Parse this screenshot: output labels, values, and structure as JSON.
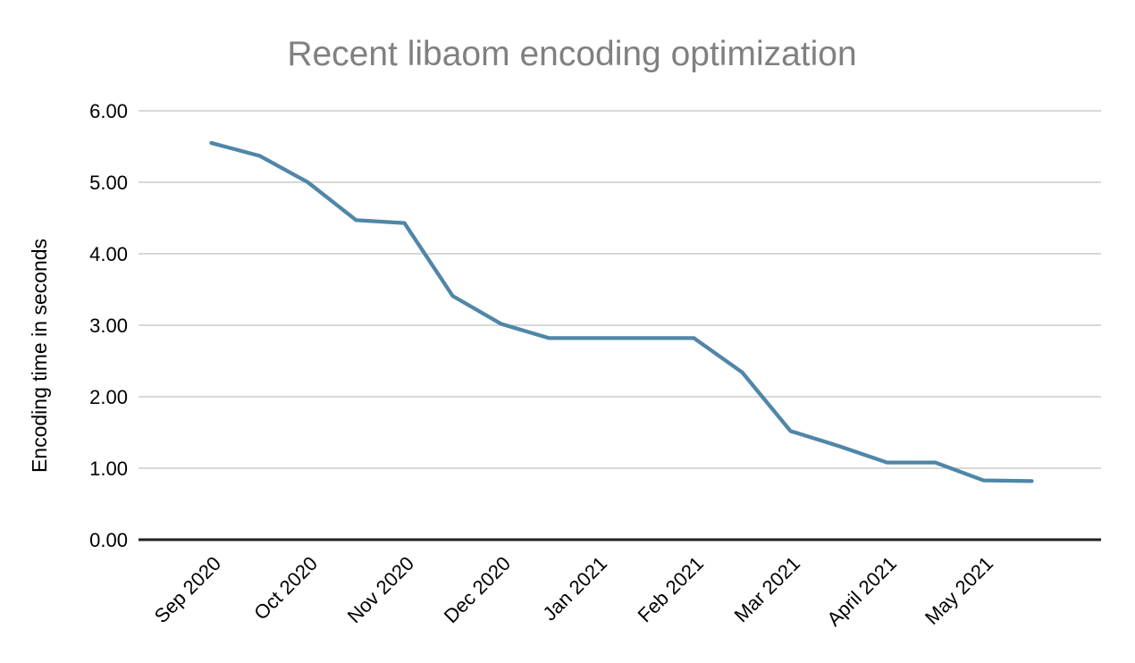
{
  "chart_data": {
    "type": "line",
    "title": "Recent libaom encoding optimization",
    "xlabel": "",
    "ylabel": "Encoding time in seconds",
    "ylim": [
      0,
      6
    ],
    "grid": true,
    "legend": "none",
    "y_ticks": [
      "0.00",
      "1.00",
      "2.00",
      "3.00",
      "4.00",
      "5.00",
      "6.00"
    ],
    "categories": [
      "Sep 2020",
      "",
      "Oct 2020",
      "",
      "Nov 2020",
      "",
      "Dec 2020",
      "",
      "Jan 2021",
      "",
      "Feb 2021",
      "",
      "Mar 2021",
      "",
      "April 2021",
      "",
      "May 2021",
      ""
    ],
    "series": [
      {
        "name": "Encoding time in seconds",
        "values": [
          5.55,
          5.37,
          5.0,
          4.47,
          4.43,
          3.41,
          3.02,
          2.82,
          2.82,
          2.82,
          2.82,
          2.34,
          1.52,
          1.31,
          1.08,
          1.08,
          0.83,
          0.82
        ]
      }
    ]
  },
  "colors": {
    "line": "#5086a8",
    "gridline": "#cccccc",
    "axis_line": "#212121",
    "title_text": "#808080",
    "tick_text": "#000000",
    "background": "#ffffff"
  }
}
